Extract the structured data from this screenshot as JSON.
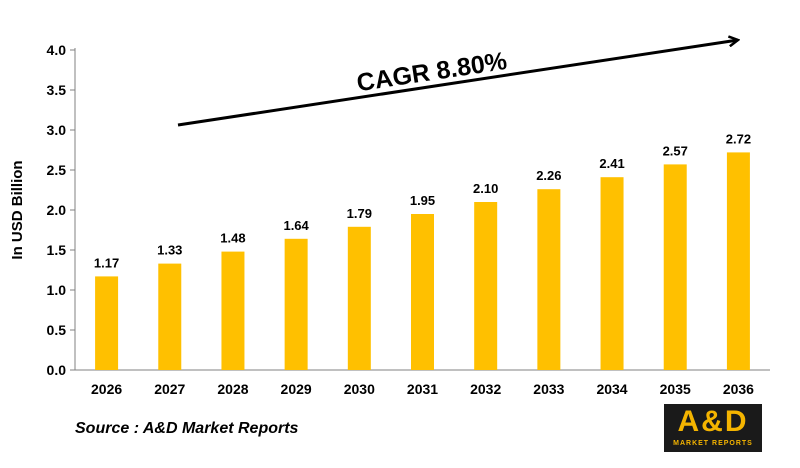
{
  "chart_data": {
    "type": "bar",
    "categories": [
      "2026",
      "2027",
      "2028",
      "2029",
      "2030",
      "2031",
      "2032",
      "2033",
      "2034",
      "2035",
      "2036"
    ],
    "values": [
      1.17,
      1.33,
      1.48,
      1.64,
      1.79,
      1.95,
      2.1,
      2.26,
      2.41,
      2.57,
      2.72
    ],
    "data_labels": [
      "1.17",
      "1.33",
      "1.48",
      "1.64",
      "1.79",
      "1.95",
      "2.10",
      "2.26",
      "2.41",
      "2.57",
      "2.72"
    ],
    "ylabel": "In USD Billion",
    "ylim": [
      0,
      4
    ],
    "yticks": [
      "0.0",
      "0.5",
      "1.0",
      "1.5",
      "2.0",
      "2.5",
      "3.0",
      "3.5",
      "4.0"
    ],
    "annotation": "CAGR 8.80%",
    "bar_color": "#FFC000",
    "grid": false,
    "legend": "none"
  },
  "source": "Source : A&D Market Reports",
  "logo": {
    "main": "A&D",
    "sub": "MARKET REPORTS"
  }
}
